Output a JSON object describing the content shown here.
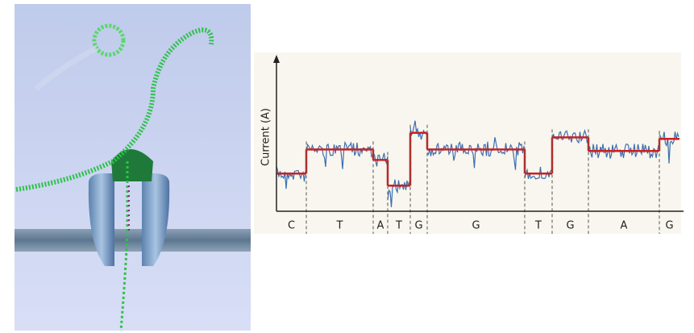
{
  "chart_data": {
    "type": "step",
    "y_label": "Current (A)",
    "categories": [
      "C",
      "T",
      "A",
      "T",
      "G",
      "G",
      "T",
      "G",
      "A",
      "G"
    ],
    "bins": [
      0,
      7.4,
      24,
      27.6,
      33.2,
      37.4,
      61.6,
      68.4,
      77.4,
      95,
      100
    ],
    "values": [
      25,
      41,
      34,
      17,
      52,
      41,
      25,
      49,
      40,
      48
    ],
    "xlim": [
      0,
      100
    ],
    "ylim": [
      0,
      100
    ],
    "color": "#cc2020",
    "noise_color": "#3b6fb0"
  }
}
